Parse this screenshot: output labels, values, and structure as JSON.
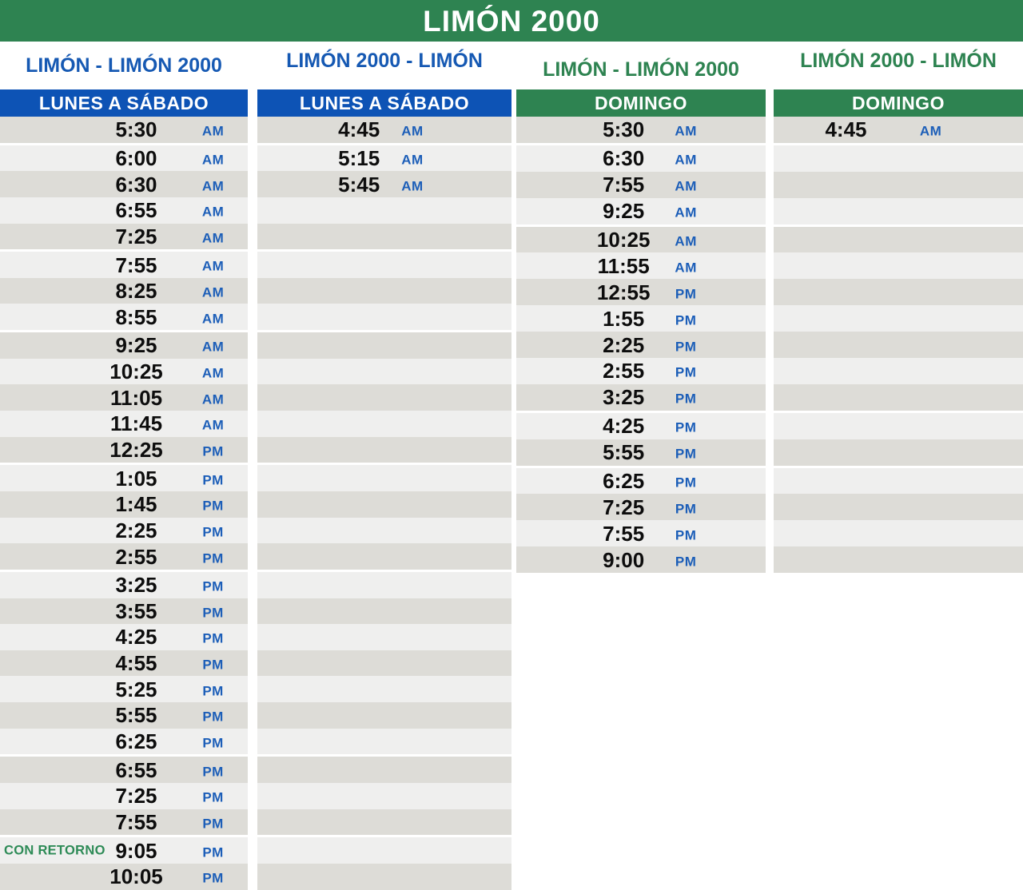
{
  "title": "LIMÓN 2000",
  "colors": {
    "green": "#2e8351",
    "blue_band": "#0d53b5",
    "blue_title": "#1659b3",
    "meridiem_blue": "#1c5eb8",
    "note_green": "#2e8b57",
    "stripe_dark": "#dddcd7",
    "stripe_light": "#efefee"
  },
  "columns": [
    {
      "route": "LIMÓN - LIMÓN 2000",
      "day": "LUNES A SÁBADO",
      "theme": "blue",
      "rows": [
        {
          "time": "5:30",
          "meridiem": "AM",
          "gap_after": true
        },
        {
          "time": "6:00",
          "meridiem": "AM"
        },
        {
          "time": "6:30",
          "meridiem": "AM"
        },
        {
          "time": "6:55",
          "meridiem": "AM"
        },
        {
          "time": "7:25",
          "meridiem": "AM",
          "gap_after": true
        },
        {
          "time": "7:55",
          "meridiem": "AM"
        },
        {
          "time": "8:25",
          "meridiem": "AM"
        },
        {
          "time": "8:55",
          "meridiem": "AM",
          "gap_after": true
        },
        {
          "time": "9:25",
          "meridiem": "AM"
        },
        {
          "time": "10:25",
          "meridiem": "AM"
        },
        {
          "time": "11:05",
          "meridiem": "AM"
        },
        {
          "time": "11:45",
          "meridiem": "AM"
        },
        {
          "time": "12:25",
          "meridiem": "PM",
          "gap_after": true
        },
        {
          "time": "1:05",
          "meridiem": "PM"
        },
        {
          "time": "1:45",
          "meridiem": "PM"
        },
        {
          "time": "2:25",
          "meridiem": "PM"
        },
        {
          "time": "2:55",
          "meridiem": "PM",
          "gap_after": true
        },
        {
          "time": "3:25",
          "meridiem": "PM"
        },
        {
          "time": "3:55",
          "meridiem": "PM"
        },
        {
          "time": "4:25",
          "meridiem": "PM"
        },
        {
          "time": "4:55",
          "meridiem": "PM"
        },
        {
          "time": "5:25",
          "meridiem": "PM"
        },
        {
          "time": "5:55",
          "meridiem": "PM"
        },
        {
          "time": "6:25",
          "meridiem": "PM",
          "gap_after": true
        },
        {
          "time": "6:55",
          "meridiem": "PM"
        },
        {
          "time": "7:25",
          "meridiem": "PM"
        },
        {
          "time": "7:55",
          "meridiem": "PM",
          "gap_after": true
        },
        {
          "time": "9:05",
          "meridiem": "PM",
          "note": "CON RETORNO"
        },
        {
          "time": "10:05",
          "meridiem": "PM"
        }
      ]
    },
    {
      "route": "LIMÓN 2000 - LIMÓN",
      "day": "LUNES A SÁBADO",
      "theme": "blue",
      "rows": [
        {
          "time": "4:45",
          "meridiem": "AM",
          "gap_after": true
        },
        {
          "time": "5:15",
          "meridiem": "AM"
        },
        {
          "time": "5:45",
          "meridiem": "AM"
        },
        {
          "time": "",
          "meridiem": ""
        },
        {
          "time": "",
          "meridiem": "",
          "gap_after": true
        },
        {
          "time": "",
          "meridiem": ""
        },
        {
          "time": "",
          "meridiem": ""
        },
        {
          "time": "",
          "meridiem": "",
          "gap_after": true
        },
        {
          "time": "",
          "meridiem": ""
        },
        {
          "time": "",
          "meridiem": ""
        },
        {
          "time": "",
          "meridiem": ""
        },
        {
          "time": "",
          "meridiem": ""
        },
        {
          "time": "",
          "meridiem": "",
          "gap_after": true
        },
        {
          "time": "",
          "meridiem": ""
        },
        {
          "time": "",
          "meridiem": ""
        },
        {
          "time": "",
          "meridiem": ""
        },
        {
          "time": "",
          "meridiem": "",
          "gap_after": true
        },
        {
          "time": "",
          "meridiem": ""
        },
        {
          "time": "",
          "meridiem": ""
        },
        {
          "time": "",
          "meridiem": ""
        },
        {
          "time": "",
          "meridiem": ""
        },
        {
          "time": "",
          "meridiem": ""
        },
        {
          "time": "",
          "meridiem": ""
        },
        {
          "time": "",
          "meridiem": "",
          "gap_after": true
        },
        {
          "time": "",
          "meridiem": ""
        },
        {
          "time": "",
          "meridiem": ""
        },
        {
          "time": "",
          "meridiem": "",
          "gap_after": true
        },
        {
          "time": "",
          "meridiem": ""
        },
        {
          "time": "",
          "meridiem": ""
        }
      ]
    },
    {
      "route": "LIMÓN - LIMÓN 2000",
      "day": "DOMINGO",
      "theme": "green",
      "rows": [
        {
          "time": "5:30",
          "meridiem": "AM",
          "gap_after": true
        },
        {
          "time": "6:30",
          "meridiem": "AM"
        },
        {
          "time": "7:55",
          "meridiem": "AM"
        },
        {
          "time": "9:25",
          "meridiem": "AM",
          "gap_after": true
        },
        {
          "time": "10:25",
          "meridiem": "AM"
        },
        {
          "time": "11:55",
          "meridiem": "AM"
        },
        {
          "time": "12:55",
          "meridiem": "PM"
        },
        {
          "time": "1:55",
          "meridiem": "PM"
        },
        {
          "time": "2:25",
          "meridiem": "PM"
        },
        {
          "time": "2:55",
          "meridiem": "PM"
        },
        {
          "time": "3:25",
          "meridiem": "PM",
          "gap_after": true
        },
        {
          "time": "4:25",
          "meridiem": "PM"
        },
        {
          "time": "5:55",
          "meridiem": "PM",
          "gap_after": true
        },
        {
          "time": "6:25",
          "meridiem": "PM"
        },
        {
          "time": "7:25",
          "meridiem": "PM"
        },
        {
          "time": "7:55",
          "meridiem": "PM"
        },
        {
          "time": "9:00",
          "meridiem": "PM"
        }
      ]
    },
    {
      "route": "LIMÓN 2000 - LIMÓN",
      "day": "DOMINGO",
      "theme": "green",
      "rows": [
        {
          "time": "4:45",
          "meridiem": "AM",
          "gap_after": true
        },
        {
          "time": "",
          "meridiem": ""
        },
        {
          "time": "",
          "meridiem": ""
        },
        {
          "time": "",
          "meridiem": "",
          "gap_after": true
        },
        {
          "time": "",
          "meridiem": ""
        },
        {
          "time": "",
          "meridiem": ""
        },
        {
          "time": "",
          "meridiem": ""
        },
        {
          "time": "",
          "meridiem": ""
        },
        {
          "time": "",
          "meridiem": ""
        },
        {
          "time": "",
          "meridiem": ""
        },
        {
          "time": "",
          "meridiem": "",
          "gap_after": true
        },
        {
          "time": "",
          "meridiem": ""
        },
        {
          "time": "",
          "meridiem": "",
          "gap_after": true
        },
        {
          "time": "",
          "meridiem": ""
        },
        {
          "time": "",
          "meridiem": ""
        },
        {
          "time": "",
          "meridiem": ""
        },
        {
          "time": "",
          "meridiem": ""
        }
      ]
    }
  ]
}
